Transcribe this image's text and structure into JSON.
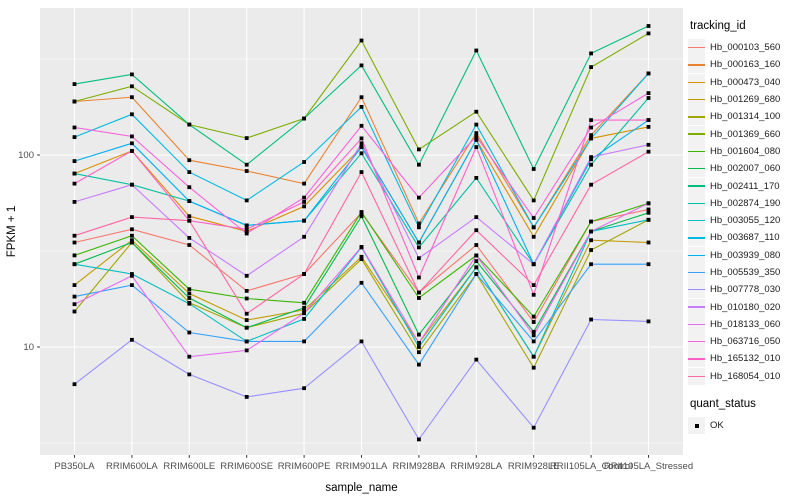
{
  "chart_data": {
    "type": "line",
    "title": "",
    "xlabel": "sample_name",
    "ylabel": "FPKM + 1",
    "y_scale": "log10",
    "y_ticks": [
      10,
      100
    ],
    "y_minor_ticks": [
      3.1623,
      31.623,
      316.23
    ],
    "grid": true,
    "panel_bg": "#EBEBEB",
    "grid_color": "#FFFFFF",
    "axis_text_color": "#4D4D4D",
    "point_shape": "filled-square",
    "point_color": "#000000",
    "categories": [
      "PB350LA",
      "RRIM600LA",
      "RRIM600LE",
      "RRIM600SE",
      "RRIM600PE",
      "RRIM901LA",
      "RRIM928BA",
      "RRIM928LA",
      "RRIM928LE",
      "RRII105LA_Control",
      "RRII105LA_Stressed"
    ],
    "series": [
      {
        "name": "Hb_000103_560",
        "color": "#F8766D",
        "values": [
          35,
          41,
          34,
          19.6,
          24,
          50,
          19.2,
          34,
          13.5,
          45,
          52
        ]
      },
      {
        "name": "Hb_000163_160",
        "color": "#EA8331",
        "values": [
          190,
          200,
          94,
          82.5,
          71,
          200,
          44,
          130,
          42,
          127,
          266
        ]
      },
      {
        "name": "Hb_000473_040",
        "color": "#D89000",
        "values": [
          80,
          105,
          48,
          40,
          54,
          110,
          35,
          120,
          37.5,
          122,
          140
        ]
      },
      {
        "name": "Hb_001269_680",
        "color": "#C09B00",
        "values": [
          21,
          36,
          19,
          13.8,
          15.6,
          29.5,
          10.5,
          26,
          8.9,
          36,
          35
        ]
      },
      {
        "name": "Hb_001314_100",
        "color": "#A3A500",
        "values": [
          15.3,
          35,
          17,
          12.6,
          15,
          28.7,
          9.4,
          24,
          7.8,
          32,
          46
        ]
      },
      {
        "name": "Hb_001369_660",
        "color": "#7CAE00",
        "values": [
          190,
          228,
          144,
          122.5,
          155,
          395,
          107,
          168,
          58,
          287,
          430
        ]
      },
      {
        "name": "Hb_001604_080",
        "color": "#39B600",
        "values": [
          30,
          38,
          20,
          17.9,
          17,
          50.5,
          18,
          30,
          14.4,
          45,
          56
        ]
      },
      {
        "name": "Hb_002007_060",
        "color": "#00BB4E",
        "values": [
          27,
          35,
          18,
          12.6,
          16,
          48,
          11.6,
          28,
          12,
          40,
          50
        ]
      },
      {
        "name": "Hb_002411_170",
        "color": "#00BF7D",
        "values": [
          234,
          263,
          144,
          89,
          155,
          293,
          89,
          350,
          84.5,
          338,
          470
        ]
      },
      {
        "name": "Hb_002874_190",
        "color": "#00C1A3",
        "values": [
          80,
          70,
          57.5,
          43,
          45.5,
          102,
          33,
          76,
          27,
          89,
          198
        ]
      },
      {
        "name": "Hb_003055_120",
        "color": "#00BFC4",
        "values": [
          27,
          24,
          16.8,
          10.7,
          14,
          33,
          10,
          26,
          8.9,
          40,
          46
        ]
      },
      {
        "name": "Hb_003687_110",
        "color": "#00BAE0",
        "values": [
          124,
          163,
          81.5,
          58,
          92,
          178,
          42,
          144,
          42,
          122,
          266
        ]
      },
      {
        "name": "Hb_003939_080",
        "color": "#00B0F6",
        "values": [
          93,
          115,
          57.5,
          43,
          45.5,
          110,
          35,
          120,
          27,
          95,
          152
        ]
      },
      {
        "name": "Hb_005539_350",
        "color": "#35A2FF",
        "values": [
          18.3,
          21,
          11.9,
          10.7,
          10.7,
          21.6,
          8.1,
          24,
          10.7,
          27,
          27
        ]
      },
      {
        "name": "Hb_007778_030",
        "color": "#9590FF",
        "values": [
          6.4,
          10.9,
          7.2,
          5.5,
          6.1,
          10.7,
          3.3,
          8.6,
          3.8,
          13.9,
          13.6
        ]
      },
      {
        "name": "Hb_010180_020",
        "color": "#C77CFF",
        "values": [
          57,
          70,
          37,
          23.5,
          37.5,
          115,
          29,
          47.5,
          27,
          97.5,
          113
        ]
      },
      {
        "name": "Hb_018133_060",
        "color": "#E76BF3",
        "values": [
          16.7,
          23.5,
          8.9,
          9.6,
          15,
          33.2,
          10.5,
          30,
          11.5,
          40,
          56
        ]
      },
      {
        "name": "Hb_063716_050",
        "color": "#FA62DB",
        "values": [
          139,
          125,
          68,
          39,
          60,
          142,
          60,
          125,
          47,
          139,
          210
        ]
      },
      {
        "name": "Hb_165132_010",
        "color": "#FF61C9",
        "values": [
          71,
          105,
          45.5,
          41,
          57,
          122,
          23,
          110,
          18.7,
          152,
          152
        ]
      },
      {
        "name": "Hb_168054_010",
        "color": "#FF67A4",
        "values": [
          38,
          47.5,
          45.5,
          14.9,
          24,
          81.5,
          19.2,
          40.6,
          21,
          70,
          104
        ]
      }
    ],
    "legend": {
      "color_title": "tracking_id",
      "position": "right",
      "shape_title": "quant_status",
      "shape_items": [
        {
          "label": "OK",
          "shape": "filled-square",
          "color": "#000000"
        }
      ]
    }
  }
}
